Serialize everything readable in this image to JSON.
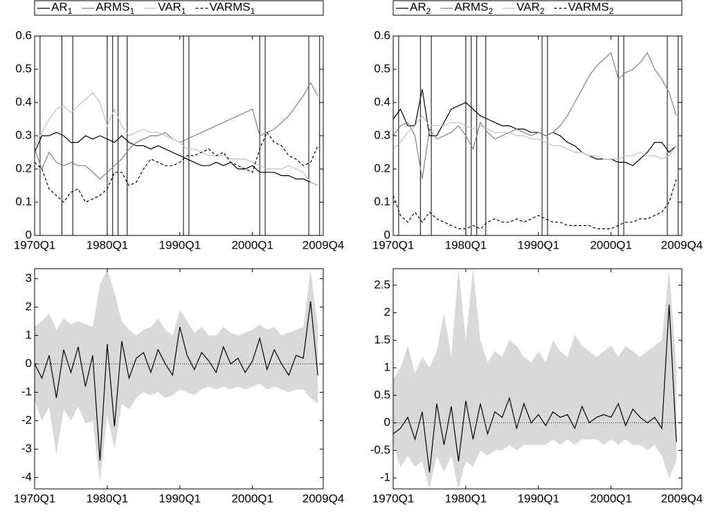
{
  "chart_data": [
    {
      "type": "line",
      "x": [
        1970,
        1971,
        1972,
        1973,
        1974,
        1975,
        1976,
        1977,
        1978,
        1979,
        1980,
        1981,
        1982,
        1983,
        1984,
        1985,
        1986,
        1987,
        1988,
        1989,
        1990,
        1991,
        1992,
        1993,
        1994,
        1995,
        1996,
        1997,
        1998,
        1999,
        2000,
        2001,
        2002,
        2003,
        2004,
        2005,
        2006,
        2007,
        2008,
        2009
      ],
      "xlim": [
        1970,
        2009.75
      ],
      "xticks": [
        {
          "value": 1970,
          "label": "1970Q1"
        },
        {
          "value": 1980,
          "label": "1980Q1"
        },
        {
          "value": 1990,
          "label": "1990Q1"
        },
        {
          "value": 2000,
          "label": "2000Q1"
        },
        {
          "value": 2009.75,
          "label": "2009Q4"
        }
      ],
      "ylim": [
        0,
        0.6
      ],
      "yticks": [
        0,
        0.1,
        0.2,
        0.3,
        0.4,
        0.5,
        0.6
      ],
      "vlines": [
        1970.75,
        1973.75,
        1975.25,
        1980,
        1980.75,
        1981.5,
        1982.75,
        1990.5,
        1991.25,
        2001,
        2001.75,
        2007.75,
        2009.25
      ],
      "legend": "top",
      "series": [
        {
          "name": "AR1",
          "color": "#000000",
          "dashed": false,
          "values": [
            0.25,
            0.3,
            0.3,
            0.31,
            0.3,
            0.28,
            0.28,
            0.3,
            0.29,
            0.3,
            0.29,
            0.28,
            0.3,
            0.28,
            0.27,
            0.27,
            0.26,
            0.27,
            0.26,
            0.25,
            0.24,
            0.23,
            0.22,
            0.21,
            0.21,
            0.22,
            0.21,
            0.22,
            0.2,
            0.2,
            0.21,
            0.19,
            0.19,
            0.19,
            0.18,
            0.18,
            0.17,
            0.17,
            0.16,
            0.15
          ]
        },
        {
          "name": "ARMS1",
          "color": "#808080",
          "dashed": false,
          "values": [
            0.26,
            0.2,
            0.25,
            0.22,
            0.21,
            0.22,
            0.21,
            0.21,
            0.19,
            0.17,
            0.19,
            0.21,
            0.23,
            0.26,
            0.28,
            0.29,
            0.3,
            0.3,
            0.31,
            0.29,
            0.28,
            0.29,
            0.3,
            0.31,
            0.32,
            0.33,
            0.34,
            0.35,
            0.36,
            0.37,
            0.38,
            0.3,
            0.31,
            0.32,
            0.34,
            0.36,
            0.39,
            0.42,
            0.46,
            0.42
          ]
        },
        {
          "name": "VAR1",
          "color": "#c0c0c0",
          "dashed": false,
          "values": [
            0.27,
            0.31,
            0.35,
            0.38,
            0.39,
            0.37,
            0.39,
            0.41,
            0.43,
            0.4,
            0.33,
            0.38,
            0.33,
            0.3,
            0.31,
            0.32,
            0.31,
            0.31,
            0.3,
            0.29,
            0.28,
            0.26,
            0.26,
            0.25,
            0.24,
            0.24,
            0.24,
            0.23,
            0.23,
            0.23,
            0.22,
            0.21,
            0.2,
            0.2,
            0.2,
            0.21,
            0.2,
            0.19,
            0.16,
            0.15
          ]
        },
        {
          "name": "VARMS1",
          "color": "#000000",
          "dashed": true,
          "values": [
            0.22,
            0.2,
            0.14,
            0.12,
            0.1,
            0.13,
            0.14,
            0.1,
            0.11,
            0.12,
            0.14,
            0.19,
            0.19,
            0.15,
            0.16,
            0.2,
            0.23,
            0.22,
            0.21,
            0.21,
            0.22,
            0.24,
            0.24,
            0.25,
            0.26,
            0.24,
            0.25,
            0.22,
            0.21,
            0.2,
            0.19,
            0.26,
            0.31,
            0.28,
            0.27,
            0.24,
            0.23,
            0.21,
            0.22,
            0.27
          ]
        }
      ]
    },
    {
      "type": "line",
      "x": [
        1970,
        1971,
        1972,
        1973,
        1974,
        1975,
        1976,
        1977,
        1978,
        1979,
        1980,
        1981,
        1982,
        1983,
        1984,
        1985,
        1986,
        1987,
        1988,
        1989,
        1990,
        1991,
        1992,
        1993,
        1994,
        1995,
        1996,
        1997,
        1998,
        1999,
        2000,
        2001,
        2002,
        2003,
        2004,
        2005,
        2006,
        2007,
        2008,
        2009
      ],
      "xlim": [
        1970,
        2009.75
      ],
      "xticks": [
        {
          "value": 1970,
          "label": "1970Q1"
        },
        {
          "value": 1980,
          "label": "1980Q1"
        },
        {
          "value": 1990,
          "label": "1990Q1"
        },
        {
          "value": 2000,
          "label": "2000Q1"
        },
        {
          "value": 2009.75,
          "label": "2009Q4"
        }
      ],
      "ylim": [
        0,
        0.6
      ],
      "yticks": [
        0,
        0.1,
        0.2,
        0.3,
        0.4,
        0.5,
        0.6
      ],
      "vlines": [
        1970.75,
        1973.75,
        1975.25,
        1980,
        1980.75,
        1981.5,
        1982.75,
        1990.5,
        1991.25,
        2001,
        2001.75,
        2007.75,
        2009.25
      ],
      "legend": "top",
      "series": [
        {
          "name": "AR2",
          "color": "#000000",
          "dashed": false,
          "values": [
            0.35,
            0.38,
            0.33,
            0.33,
            0.44,
            0.3,
            0.3,
            0.34,
            0.38,
            0.39,
            0.4,
            0.38,
            0.36,
            0.35,
            0.34,
            0.33,
            0.33,
            0.32,
            0.32,
            0.31,
            0.31,
            0.3,
            0.31,
            0.3,
            0.28,
            0.27,
            0.25,
            0.24,
            0.23,
            0.23,
            0.23,
            0.22,
            0.22,
            0.21,
            0.23,
            0.25,
            0.28,
            0.28,
            0.25,
            0.27
          ]
        },
        {
          "name": "ARMS2",
          "color": "#808080",
          "dashed": false,
          "values": [
            0.3,
            0.33,
            0.34,
            0.3,
            0.17,
            0.32,
            0.29,
            0.3,
            0.31,
            0.33,
            0.3,
            0.26,
            0.34,
            0.31,
            0.29,
            0.3,
            0.31,
            0.32,
            0.31,
            0.3,
            0.31,
            0.3,
            0.31,
            0.33,
            0.36,
            0.4,
            0.44,
            0.48,
            0.51,
            0.53,
            0.55,
            0.47,
            0.49,
            0.5,
            0.52,
            0.55,
            0.5,
            0.47,
            0.43,
            0.36
          ]
        },
        {
          "name": "VAR2",
          "color": "#c0c0c0",
          "dashed": false,
          "values": [
            0.26,
            0.28,
            0.31,
            0.33,
            0.36,
            0.33,
            0.33,
            0.33,
            0.34,
            0.34,
            0.33,
            0.32,
            0.33,
            0.32,
            0.31,
            0.31,
            0.31,
            0.3,
            0.3,
            0.29,
            0.29,
            0.28,
            0.27,
            0.27,
            0.26,
            0.25,
            0.25,
            0.24,
            0.24,
            0.23,
            0.23,
            0.23,
            0.24,
            0.24,
            0.25,
            0.24,
            0.24,
            0.23,
            0.24,
            0.27
          ]
        },
        {
          "name": "VARMS2",
          "color": "#000000",
          "dashed": true,
          "values": [
            0.12,
            0.06,
            0.04,
            0.07,
            0.04,
            0.07,
            0.05,
            0.04,
            0.03,
            0.02,
            0.02,
            0.03,
            0.02,
            0.04,
            0.05,
            0.04,
            0.04,
            0.05,
            0.04,
            0.05,
            0.06,
            0.05,
            0.04,
            0.04,
            0.03,
            0.03,
            0.03,
            0.03,
            0.02,
            0.02,
            0.02,
            0.03,
            0.04,
            0.04,
            0.05,
            0.05,
            0.06,
            0.07,
            0.1,
            0.17
          ]
        }
      ]
    },
    {
      "type": "line",
      "x": [
        1970,
        1971,
        1972,
        1973,
        1974,
        1975,
        1976,
        1977,
        1978,
        1979,
        1980,
        1981,
        1982,
        1983,
        1984,
        1985,
        1986,
        1987,
        1988,
        1989,
        1990,
        1991,
        1992,
        1993,
        1994,
        1995,
        1996,
        1997,
        1998,
        1999,
        2000,
        2001,
        2002,
        2003,
        2004,
        2005,
        2006,
        2007,
        2008,
        2009
      ],
      "xlim": [
        1970,
        2009.75
      ],
      "xticks": [
        {
          "value": 1970,
          "label": "1970Q1"
        },
        {
          "value": 1980,
          "label": "1980Q1"
        },
        {
          "value": 1990,
          "label": "1990Q1"
        },
        {
          "value": 2000,
          "label": "2000Q1"
        },
        {
          "value": 2009.75,
          "label": "2009Q4"
        }
      ],
      "ylim": [
        -4.4,
        3.35
      ],
      "yticks": [
        -4,
        -3,
        -2,
        -1,
        0,
        1,
        2,
        3
      ],
      "hline": 0,
      "band": {
        "color": "#d9d9d9",
        "upper": [
          1.3,
          1.5,
          1.8,
          1.2,
          1.6,
          1.4,
          1.5,
          1.4,
          1.3,
          2.8,
          3.3,
          2.5,
          1.5,
          1.2,
          1.0,
          1.2,
          1.3,
          1.6,
          1.2,
          1.0,
          1.9,
          1.5,
          1.1,
          1.3,
          1.0,
          1.0,
          1.3,
          1.1,
          1.0,
          1.1,
          1.2,
          1.4,
          1.2,
          1.3,
          1.0,
          1.1,
          1.2,
          1.3,
          3.3,
          1.3
        ],
        "lower": [
          -1.3,
          -2.0,
          -1.5,
          -3.2,
          -1.6,
          -2.0,
          -1.5,
          -2.1,
          -2.0,
          -4.2,
          -1.8,
          -3.0,
          -1.4,
          -1.6,
          -1.2,
          -1.0,
          -1.1,
          -1.0,
          -1.2,
          -1.1,
          -0.9,
          -1.0,
          -1.1,
          -0.9,
          -0.8,
          -0.9,
          -0.8,
          -0.9,
          -0.8,
          -0.9,
          -0.8,
          -0.7,
          -0.9,
          -0.8,
          -0.9,
          -1.0,
          -0.9,
          -0.9,
          -1.2,
          -1.4
        ]
      },
      "series": [
        {
          "color": "#000000",
          "dashed": false,
          "values": [
            0,
            -0.5,
            0.3,
            -1.2,
            0.5,
            -0.3,
            0.6,
            -0.8,
            0.3,
            -3.4,
            0.7,
            -2.2,
            0.8,
            -0.5,
            0.2,
            0.4,
            -0.3,
            0.5,
            0,
            -0.4,
            1.3,
            0.3,
            -0.2,
            0.4,
            0.1,
            -0.3,
            0.6,
            0,
            0.2,
            -0.3,
            0.1,
            0.9,
            -0.2,
            0.5,
            0,
            -0.4,
            0.3,
            0.2,
            2.2,
            -0.4
          ]
        }
      ]
    },
    {
      "type": "line",
      "x": [
        1970,
        1971,
        1972,
        1973,
        1974,
        1975,
        1976,
        1977,
        1978,
        1979,
        1980,
        1981,
        1982,
        1983,
        1984,
        1985,
        1986,
        1987,
        1988,
        1989,
        1990,
        1991,
        1992,
        1993,
        1994,
        1995,
        1996,
        1997,
        1998,
        1999,
        2000,
        2001,
        2002,
        2003,
        2004,
        2005,
        2006,
        2007,
        2008,
        2009
      ],
      "xlim": [
        1970,
        2009.75
      ],
      "xticks": [
        {
          "value": 1970,
          "label": "1970Q1"
        },
        {
          "value": 1980,
          "label": "1980Q1"
        },
        {
          "value": 1990,
          "label": "1990Q1"
        },
        {
          "value": 2000,
          "label": "2000Q1"
        },
        {
          "value": 2009.75,
          "label": "2009Q4"
        }
      ],
      "ylim": [
        -1.2,
        2.8
      ],
      "yticks": [
        -1,
        -0.5,
        0,
        0.5,
        1,
        1.5,
        2,
        2.5
      ],
      "hline": 0,
      "band": {
        "color": "#d9d9d9",
        "upper": [
          0.8,
          1.0,
          1.4,
          0.9,
          1.2,
          1.0,
          1.3,
          2.0,
          1.2,
          2.8,
          1.5,
          2.8,
          1.5,
          1.1,
          1.3,
          1.2,
          1.5,
          1.4,
          1.2,
          1.1,
          1.3,
          1.1,
          1.5,
          1.3,
          1.2,
          1.6,
          1.4,
          1.3,
          1.2,
          1.3,
          1.4,
          1.2,
          1.4,
          1.3,
          1.2,
          1.3,
          1.4,
          1.5,
          2.8,
          1.0
        ],
        "lower": [
          -0.4,
          -0.8,
          -0.6,
          -0.8,
          -0.7,
          -1.2,
          -0.6,
          -0.9,
          -0.6,
          -1.2,
          -0.7,
          -0.8,
          -0.5,
          -0.6,
          -0.5,
          -0.5,
          -0.4,
          -0.5,
          -0.4,
          -0.4,
          -0.4,
          -0.4,
          -0.3,
          -0.4,
          -0.3,
          -0.4,
          -0.3,
          -0.3,
          -0.3,
          -0.4,
          -0.3,
          -0.4,
          -0.3,
          -0.4,
          -0.4,
          -0.5,
          -0.4,
          -0.6,
          -1.0,
          -0.7
        ]
      },
      "series": [
        {
          "color": "#000000",
          "dashed": false,
          "values": [
            -0.2,
            -0.1,
            0.1,
            -0.3,
            0.2,
            -0.9,
            0.35,
            -0.4,
            0.3,
            -0.7,
            0.4,
            -0.3,
            0.35,
            -0.2,
            0.2,
            0.1,
            0.45,
            -0.1,
            0.35,
            0,
            0.15,
            -0.05,
            0.2,
            0.1,
            0.15,
            -0.1,
            0.3,
            0,
            0.1,
            0.15,
            0.1,
            0.35,
            -0.05,
            0.25,
            0.1,
            0,
            0.1,
            -0.1,
            2.15,
            -0.35
          ]
        }
      ]
    }
  ]
}
